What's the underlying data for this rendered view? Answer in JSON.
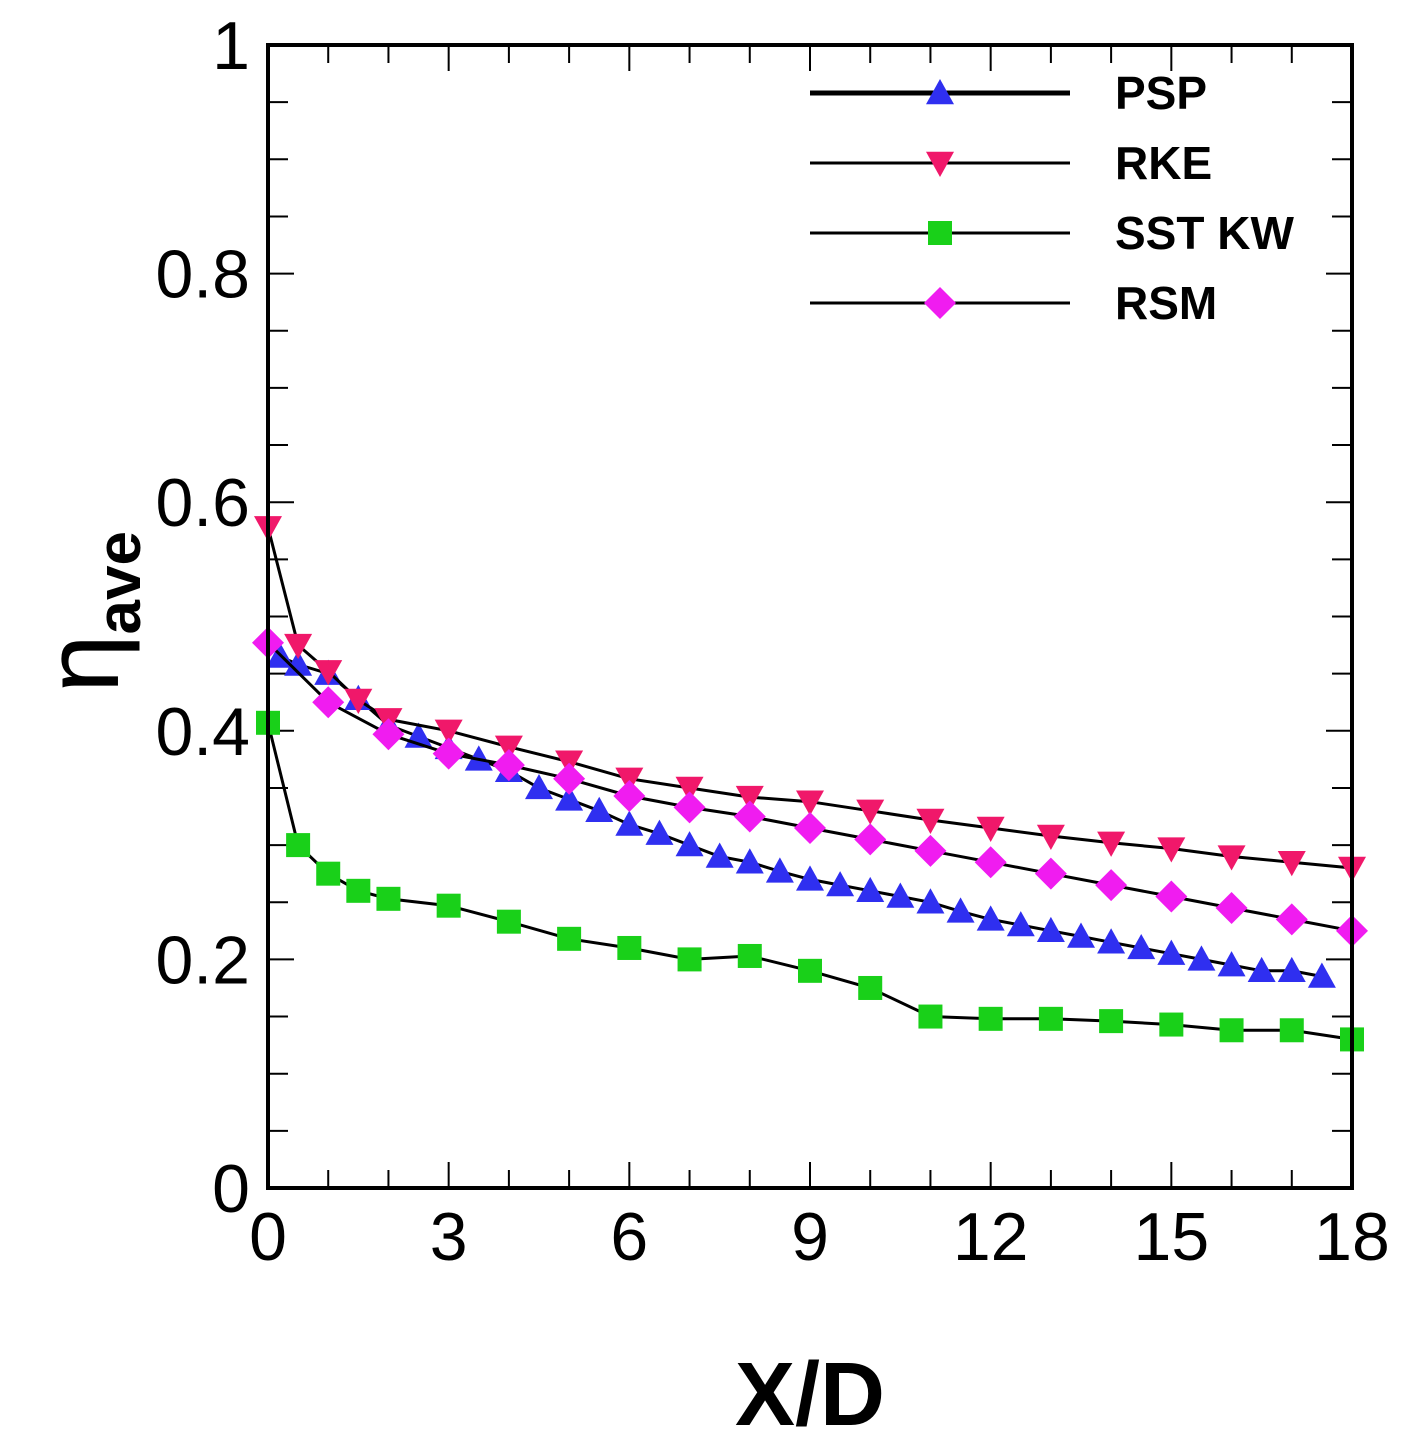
{
  "chart_data": {
    "type": "line",
    "xlabel": "X/D",
    "ylabel_main": "η",
    "ylabel_sub": "ave",
    "xlim": [
      0,
      18
    ],
    "ylim": [
      0,
      1
    ],
    "xticks": [
      0,
      3,
      6,
      9,
      12,
      15,
      18
    ],
    "xtick_labels": [
      "0",
      "3",
      "6",
      "9",
      "12",
      "15",
      "18"
    ],
    "yticks": [
      0,
      0.2,
      0.4,
      0.6,
      0.8,
      1
    ],
    "ytick_labels": [
      "0",
      "0.2",
      "0.4",
      "0.6",
      "0.8",
      "1"
    ],
    "legend_position": "top-right",
    "series": [
      {
        "name": "PSP",
        "marker": "triangle-up",
        "color": "#2f2ff0",
        "x": [
          0.2,
          0.5,
          1,
          1.5,
          2,
          2.5,
          3,
          3.5,
          4,
          4.5,
          5,
          5.5,
          6,
          6.5,
          7,
          7.5,
          8,
          8.5,
          9,
          9.5,
          10,
          10.5,
          11,
          11.5,
          12,
          12.5,
          13,
          13.5,
          14,
          14.5,
          15,
          15.5,
          16,
          16.5,
          17,
          17.5
        ],
        "y": [
          0.465,
          0.458,
          0.45,
          0.428,
          0.405,
          0.395,
          0.385,
          0.375,
          0.365,
          0.35,
          0.34,
          0.33,
          0.318,
          0.31,
          0.3,
          0.29,
          0.285,
          0.277,
          0.27,
          0.265,
          0.26,
          0.255,
          0.25,
          0.242,
          0.235,
          0.23,
          0.225,
          0.22,
          0.215,
          0.21,
          0.205,
          0.2,
          0.195,
          0.19,
          0.19,
          0.185
        ]
      },
      {
        "name": "RKE",
        "marker": "triangle-down",
        "color": "#f0186a",
        "x": [
          0,
          0.5,
          1,
          1.5,
          2,
          3,
          4,
          5,
          6,
          7,
          8,
          9,
          10,
          11,
          12,
          13,
          14,
          15,
          16,
          17,
          18
        ],
        "y": [
          0.578,
          0.475,
          0.452,
          0.427,
          0.41,
          0.4,
          0.386,
          0.373,
          0.358,
          0.35,
          0.342,
          0.338,
          0.33,
          0.322,
          0.315,
          0.308,
          0.302,
          0.297,
          0.29,
          0.285,
          0.28
        ]
      },
      {
        "name": "SST KW",
        "marker": "square",
        "color": "#19d019",
        "x": [
          0,
          0.5,
          1,
          1.5,
          2,
          3,
          4,
          5,
          6,
          7,
          8,
          9,
          10,
          11,
          12,
          13,
          14,
          15,
          16,
          17,
          18
        ],
        "y": [
          0.407,
          0.3,
          0.275,
          0.26,
          0.253,
          0.247,
          0.233,
          0.218,
          0.21,
          0.2,
          0.203,
          0.19,
          0.175,
          0.15,
          0.148,
          0.148,
          0.146,
          0.143,
          0.138,
          0.138,
          0.13
        ]
      },
      {
        "name": "RSM",
        "marker": "diamond",
        "color": "#f01cf0",
        "x": [
          0,
          1,
          2,
          3,
          4,
          5,
          6,
          7,
          8,
          9,
          10,
          11,
          12,
          13,
          14,
          15,
          16,
          17,
          18
        ],
        "y": [
          0.477,
          0.425,
          0.397,
          0.38,
          0.37,
          0.358,
          0.343,
          0.333,
          0.325,
          0.315,
          0.305,
          0.295,
          0.285,
          0.275,
          0.265,
          0.255,
          0.245,
          0.235,
          0.225
        ]
      }
    ]
  }
}
